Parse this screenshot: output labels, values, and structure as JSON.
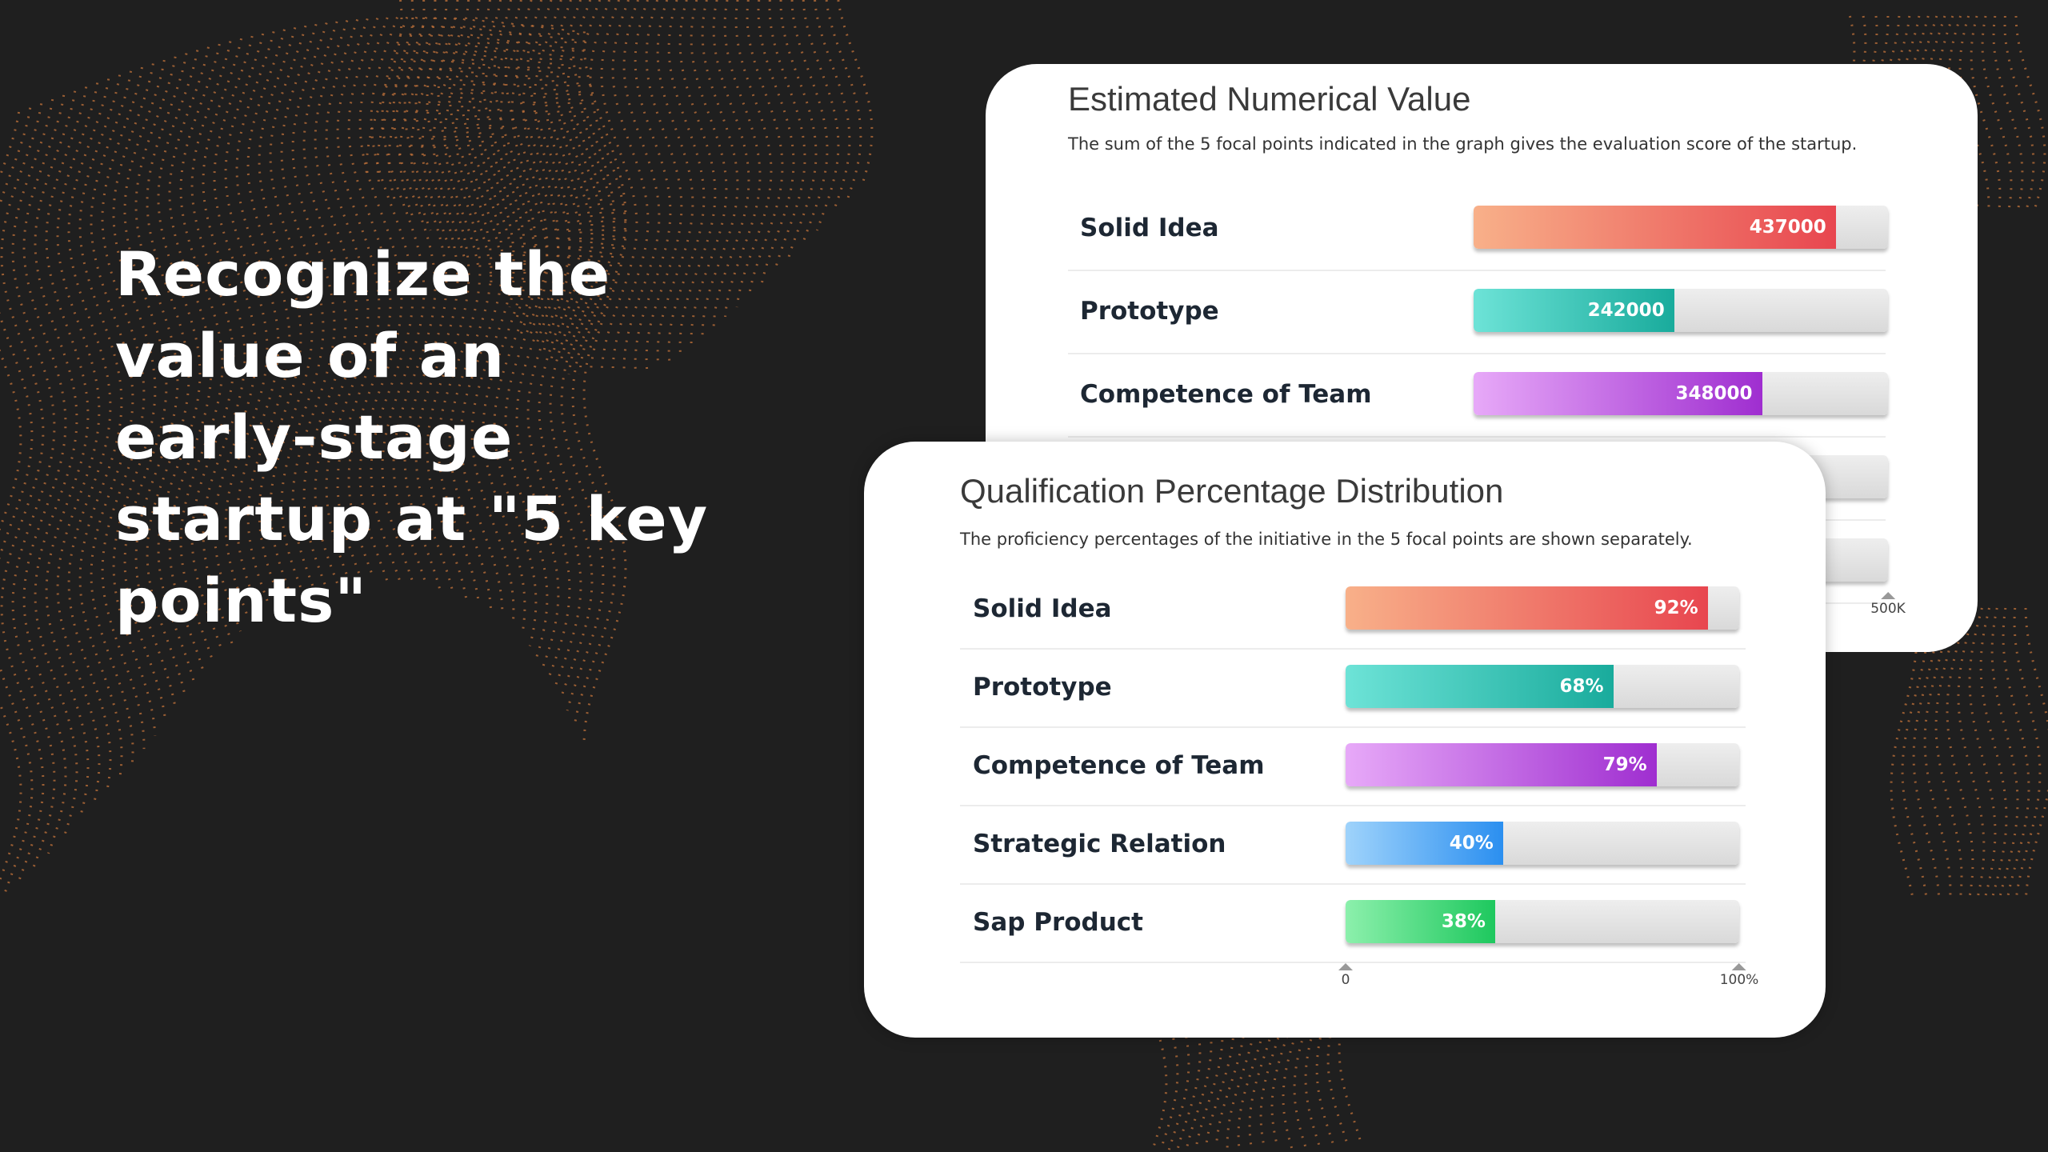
{
  "headline": "Recognize the value of an early-stage startup at \"5 key points\"",
  "colors": {
    "background": "#1f1f1f",
    "pattern": "#c4733a",
    "solid_idea": [
      "#f8b089",
      "#e8464f"
    ],
    "prototype": [
      "#6de3d7",
      "#19ab9c"
    ],
    "competence_of_team": [
      "#e7a9f8",
      "#9f2ed0"
    ],
    "strategic_relation": [
      "#9fd3fb",
      "#2b8ff0"
    ],
    "sap_product": [
      "#8cf0ac",
      "#1ec85e"
    ]
  },
  "chart_data": [
    {
      "type": "bar",
      "orientation": "horizontal",
      "title": "Estimated Numerical Value",
      "subtitle": "The sum of the 5 focal points indicated in the graph gives the evaluation score of the startup.",
      "categories": [
        "Solid Idea",
        "Prototype",
        "Competence of Team",
        "",
        ""
      ],
      "values": [
        437000,
        242000,
        348000,
        null,
        null
      ],
      "value_labels": [
        "437000",
        "242000",
        "348000",
        "",
        ""
      ],
      "xlim": [
        0,
        500000
      ],
      "ticks": [
        "500K"
      ],
      "series_colors": [
        "solid_idea",
        "prototype",
        "competence_of_team",
        "strategic_relation",
        "sap_product"
      ],
      "partially_obscured": true
    },
    {
      "type": "bar",
      "orientation": "horizontal",
      "title": "Qualification Percentage Distribution",
      "subtitle": "The proficiency percentages of the initiative in the 5 focal points are shown separately.",
      "categories": [
        "Solid Idea",
        "Prototype",
        "Competence of Team",
        "Strategic Relation",
        "Sap Product"
      ],
      "values": [
        92,
        68,
        79,
        40,
        38
      ],
      "value_labels": [
        "92%",
        "68%",
        "79%",
        "40%",
        "38%"
      ],
      "xlim": [
        0,
        100
      ],
      "ticks": [
        "0",
        "100%"
      ],
      "series_colors": [
        "solid_idea",
        "prototype",
        "competence_of_team",
        "strategic_relation",
        "sap_product"
      ]
    }
  ]
}
